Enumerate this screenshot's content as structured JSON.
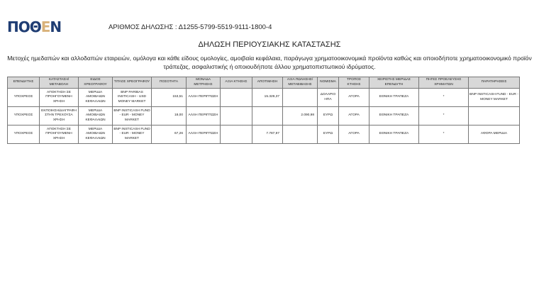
{
  "header": {
    "logo_text": "ΠΟΘΕΝ",
    "declaration_label": "ΑΡΙΘΜΟΣ ΔΗΛΩΣΗΣ :",
    "declaration_number": "Δ1255-5799-5519-9111-1800-4"
  },
  "title": "ΔΗΛΩΣΗ ΠΕΡΙΟΥΣΙΑΚΗΣ ΚΑΤΑΣΤΑΣΗΣ",
  "subtitle_line1": "Μετοχές ημεδαπών και αλλοδαπών εταιρειών, ομόλογα και κάθε είδους ομολογίες, αμοιβαία κεφάλαια, παράγωγα χρηματοοικονομικά προϊόντα καθώς και οποιοδήποτε χρηματοοικονομικό προϊόν",
  "subtitle_line2": "τράπεζας, ασφαλιστικής ή οποιουδήποτε άλλου χρηματοπιστωτικού ιδρύματος.",
  "table": {
    "columns": [
      "ΕΠΕΝΔΥΤΗΣ",
      "ΚΑΤΑΣΤΑΣΗ/ ΜΕΤΑΒΟΛΗ",
      "ΕΙΔΟΣ ΧΡΕΟΓΡΑΦΟΥ",
      "ΤΙΤΛΟΣ ΧΡΕΟΓΡΑΦΟΥ",
      "ΠΟΣΟΤΗΤΑ",
      "ΜΟΝΑΔΑ ΜΕΤΡΗΣΗΣ",
      "ΑΞΙΑ ΚΤΗΣΗΣ",
      "ΑΠΟΤΙΜΗΣΗ",
      "ΑΞΙΑ ΠΩΛΗΣΗΣ/ ΜΕΤΑΒΙΒΑΣΗΣ",
      "ΝΟΜΙΣΜΑ",
      "ΤΡΟΠΟΣ ΚΤΗΣΗΣ",
      "ΧΕΙΡΙΣΤΗΣ ΜΕΡΙΔΑΣ ΕΠΕΝΔΥΤΗ",
      "ΠΗΓΕΣ ΠΡΟΕΛΕΥΣΗΣ ΧΡΗΜΑΤΩΝ",
      "ΠΑΡΑΤΗΡΗΣΕΙΣ"
    ],
    "rows": [
      [
        "ΥΠΟΧΡΕΟΣ",
        "ΑΠΟΚΤΗΣΗ ΣΕ ΠΡΟΗΓΟΥΜΕΝΗ ΧΡΗΣΗ",
        "ΜΕΡΙΔΙΑ ΑΜΟΙΒΑΙΩΝ ΚΕΦΑΛΑΙΩΝ",
        "BNP PARIBAS INSTICASH - USD MONEY MARKET",
        "153,51",
        "ΑΛΛΗ ΠΕΡΙΠΤΩΣΗ",
        "",
        "15.329,37",
        "",
        "ΔΟΛΑΡΙΟ ΗΠΑ",
        "ΑΓΟΡΑ",
        "ΕΘΝΙΚΗ ΤΡΑΠΕΖΑ",
        "*",
        "BNP INSTICASH FUND - EUR - MONEY MARKET"
      ],
      [
        "ΥΠΟΧΡΕΟΣ",
        "ΕΚΠΟΙΗΣΗ/ΔΙΑΓΡΑΦΗ ΣΤΗΝ ΤΡΕΧΟΥΣΑ ΧΡΗΣΗ",
        "ΜΕΡΙΔΙΑ ΑΜΟΙΒΑΙΩΝ ΚΕΦΑΛΑΙΩΝ",
        "BNP INSTICASH FUND - EUR - MONEY MARKET",
        "18,00",
        "ΑΛΛΗ ΠΕΡΙΠΤΩΣΗ",
        "",
        "",
        "2.090,98",
        "ΕΥΡΩ",
        "ΑΓΟΡΑ",
        "ΕΘΝΙΚΗ ΤΡΑΠΕΖΑ",
        "*",
        ""
      ],
      [
        "ΥΠΟΧΡΕΟΣ",
        "ΑΠΟΚΤΗΣΗ ΣΕ ΠΡΟΗΓΟΥΜΕΝΗ ΧΡΗΣΗ",
        "ΜΕΡΙΔΙΑ ΑΜΟΙΒΑΙΩΝ ΚΕΦΑΛΑΙΩΝ",
        "BNP INSTICASH FUND - EUR - MONEY MARKET",
        "67,26",
        "ΑΛΛΗ ΠΕΡΙΠΤΩΣΗ",
        "",
        "7.787,97",
        "",
        "ΕΥΡΩ",
        "ΑΓΟΡΑ",
        "ΕΘΝΙΚΗ ΤΡΑΠΕΖΑ",
        "*",
        "ΑΦΟΡΑ ΜΕΡΙΔΙΑ"
      ]
    ]
  }
}
